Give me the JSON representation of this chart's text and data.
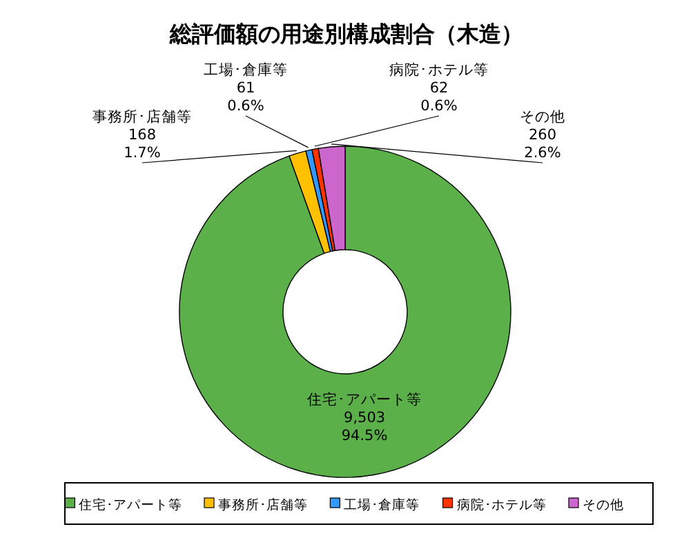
{
  "chart_data": {
    "type": "donut",
    "title": "総評価額の用途別構成割合（木造）",
    "categories": [
      "住宅･アパート等",
      "事務所･店舗等",
      "工場･倉庫等",
      "病院･ホテル等",
      "その他"
    ],
    "values": [
      9503,
      168,
      61,
      62,
      260
    ],
    "value_labels": [
      "9,503\n94.5%",
      "168\n1.7%",
      "61\n0.6%",
      "62\n0.6%",
      "260\n2.6%"
    ],
    "colors": [
      "#5bb04a",
      "#ffc000",
      "#3399ff",
      "#ff3300",
      "#cc66cc"
    ],
    "legend": "bottom"
  }
}
